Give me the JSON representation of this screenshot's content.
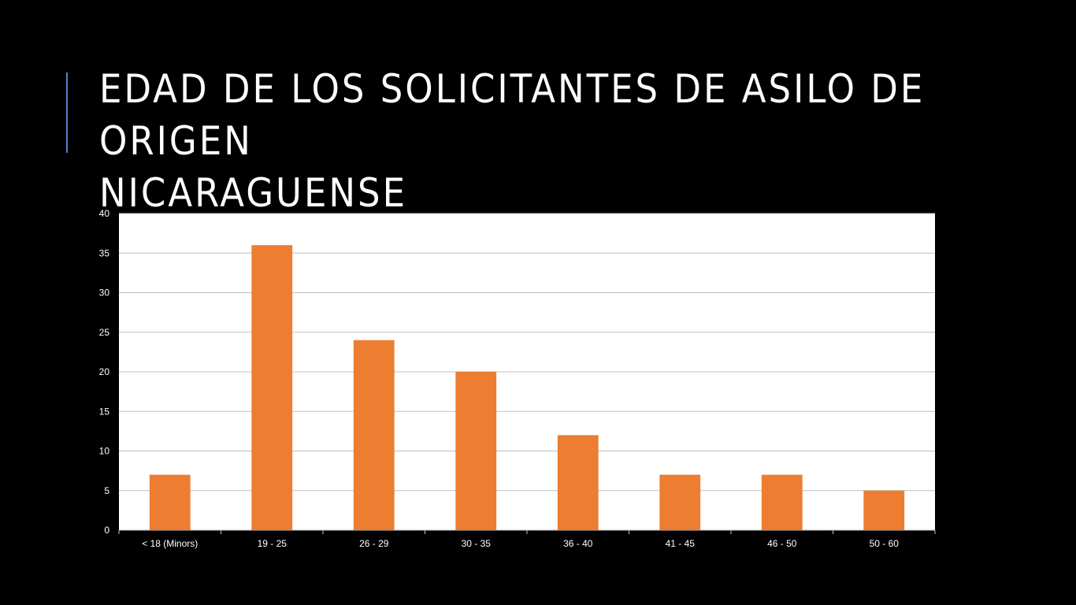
{
  "slide": {
    "title": "EDAD DE LOS SOLICITANTES DE ASILO DE ORIGEN\nNICARAGUENSE",
    "accent_color": "#4a86c8",
    "background_color": "#000000"
  },
  "chart_data": {
    "type": "bar",
    "categories": [
      "< 18 (Minors)",
      "19 - 25",
      "26 - 29",
      "30 - 35",
      "36 - 40",
      "41 - 45",
      "46 - 50",
      "50 - 60"
    ],
    "values": [
      7,
      36,
      24,
      20,
      12,
      7,
      7,
      5
    ],
    "ylim": [
      0,
      40
    ],
    "yticks": [
      0,
      5,
      10,
      15,
      20,
      25,
      30,
      35,
      40
    ],
    "grid": true,
    "legend": "none",
    "bar_color": "#ed7d31",
    "plot_background": "#ffffff",
    "grid_color": "#bfbfbf"
  }
}
